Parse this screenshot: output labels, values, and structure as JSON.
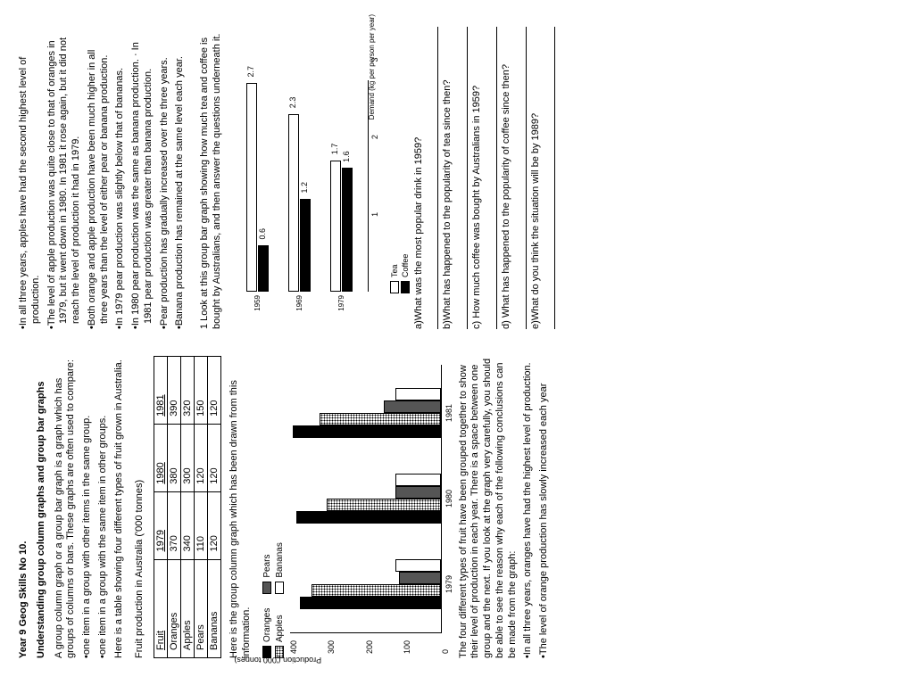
{
  "header": {
    "line1": "Year 9 Geog Skills No 10.",
    "line2": "Understanding group column graphs and group bar graphs"
  },
  "intro": {
    "p1": "A group column graph or a group bar graph is a graph which has groups of columns or bars. These graphs are often used to compare:",
    "b1": "•one item in a group with other items in the same group.",
    "b2": "•one item in a group with the same item in other groups.",
    "p2": "Here is a table showing four different types of fruit grown in Australia."
  },
  "table": {
    "caption": "Fruit production in Australia ('000 tonnes)",
    "headers": [
      "Fruit",
      "1979",
      "1980",
      "1981"
    ],
    "rows": [
      [
        "Oranges",
        "370",
        "380",
        "390"
      ],
      [
        "Apples",
        "340",
        "300",
        "320"
      ],
      [
        "Pears",
        "110",
        "120",
        "150"
      ],
      [
        "Bananas",
        "120",
        "120",
        "120"
      ]
    ]
  },
  "chart1": {
    "intro": "Here is the group column graph which has been drawn from this information.",
    "ylabel": "Production ('000 tonnes)",
    "ymax": 400,
    "yticks": [
      0,
      100,
      200,
      300,
      400
    ],
    "legend": [
      {
        "label": "Oranges",
        "class": "b-black"
      },
      {
        "label": "Apples",
        "class": "b-dots"
      },
      {
        "label": "Pears",
        "class": "b-gray"
      },
      {
        "label": "Bananas",
        "class": "b-white"
      }
    ],
    "groups": [
      {
        "label": "1979",
        "vals": [
          370,
          340,
          110,
          120
        ]
      },
      {
        "label": "1980",
        "vals": [
          380,
          300,
          120,
          120
        ]
      },
      {
        "label": "1981",
        "vals": [
          390,
          320,
          150,
          120
        ]
      }
    ]
  },
  "conclusions": {
    "p1": "The four different types of fruit have been grouped together to show their level of production in each year. There is a space between one group and the next. If you look at the graph very carefully, you should be able to see the reason why each of the following conclusions can be made from the graph:",
    "items": [
      "•In all three years, oranges have had the highest level of production.",
      "•The level of orange production has slowly increased each year",
      "•In all three years, apples have had the second highest level of production.",
      "•The level of apple production was quite close to that of oranges in 1979, but it went down in 1980. In 1981 it rose again, but it did not reach the level of production it had in 1979.",
      "•Both orange and apple production have been much higher in all three years than the level of either pear or banana production.",
      "•In 1979 pear production was slightly below that of bananas.",
      "•In 1980 pear production was the same as banana production. · In 1981 pear production was greater than banana production.",
      "•Pear production has gradually increased over the three years.",
      "•Banana production has remained at the same level each year."
    ]
  },
  "chart2": {
    "intro": "1 Look at this group bar graph showing how much tea and coffee is bought by Australians, and then answer the questions underneath it.",
    "xlabel": "Demand (kg per person per year)",
    "xmax": 3,
    "xticks": [
      1,
      2,
      3
    ],
    "legend": [
      {
        "label": "Tea",
        "class": "hb-white"
      },
      {
        "label": "Coffee",
        "class": "hb-black"
      }
    ],
    "rows": [
      {
        "label": "1959",
        "tea": 2.7,
        "coffee": 0.6
      },
      {
        "label": "1969",
        "tea": 2.3,
        "coffee": 1.2
      },
      {
        "label": "1979",
        "tea": 1.7,
        "coffee": 1.6
      }
    ]
  },
  "questions": {
    "items": [
      "a)What was the most popular drink in 1959?",
      "b)What has happened to the popularity of tea since then?",
      "c) How much coffee was bought by Australians in 1959?",
      "d) What has happened to the popularity of coffee since then?",
      "e)What do you think the situation will be by 1989?"
    ]
  }
}
